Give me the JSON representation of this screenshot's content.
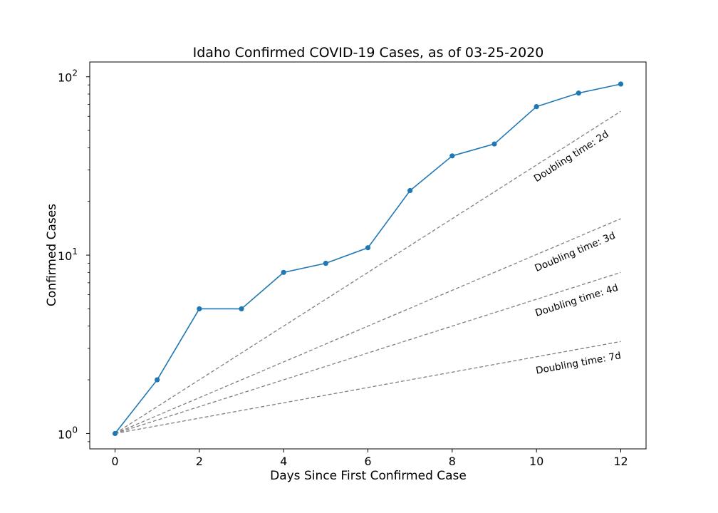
{
  "chart_data": {
    "type": "line",
    "title": "Idaho Confirmed COVID-19 Cases, as of 03-25-2020",
    "xlabel": "Days Since First Confirmed Case",
    "ylabel": "Confirmed Cases",
    "xlim": [
      -0.6,
      12.6
    ],
    "ylim": [
      0.82,
      121
    ],
    "yscale": "log",
    "grid": false,
    "x_ticks": [
      0,
      2,
      4,
      6,
      8,
      10,
      12
    ],
    "x_tick_labels": [
      "0",
      "2",
      "4",
      "6",
      "8",
      "10",
      "12"
    ],
    "y_ticks": [
      {
        "value": 1,
        "base": "10",
        "exp": "0"
      },
      {
        "value": 10,
        "base": "10",
        "exp": "1"
      },
      {
        "value": 100,
        "base": "10",
        "exp": "2"
      }
    ],
    "series": [
      {
        "x": [
          0,
          1,
          2,
          3,
          4,
          5,
          6,
          7,
          8,
          9,
          10,
          11,
          12
        ],
        "values": [
          1,
          2,
          5,
          5,
          8,
          9,
          11,
          23,
          36,
          42,
          68,
          81,
          91
        ],
        "color": "#1f77b4",
        "style": "line-with-markers"
      }
    ],
    "reference_lines": [
      {
        "label": "Doubling time: 2d",
        "doubling_days": 2,
        "x": [
          0,
          12
        ],
        "values": [
          1,
          64
        ],
        "color": "#808080",
        "style": "dashed"
      },
      {
        "label": "Doubling time: 3d",
        "doubling_days": 3,
        "x": [
          0,
          12
        ],
        "values": [
          1,
          16
        ],
        "color": "#808080",
        "style": "dashed"
      },
      {
        "label": "Doubling time: 4d",
        "doubling_days": 4,
        "x": [
          0,
          12
        ],
        "values": [
          1,
          8
        ],
        "color": "#808080",
        "style": "dashed"
      },
      {
        "label": "Doubling time: 7d",
        "doubling_days": 7,
        "x": [
          0,
          12
        ],
        "values": [
          1,
          3.28
        ],
        "color": "#808080",
        "style": "dashed"
      }
    ]
  }
}
